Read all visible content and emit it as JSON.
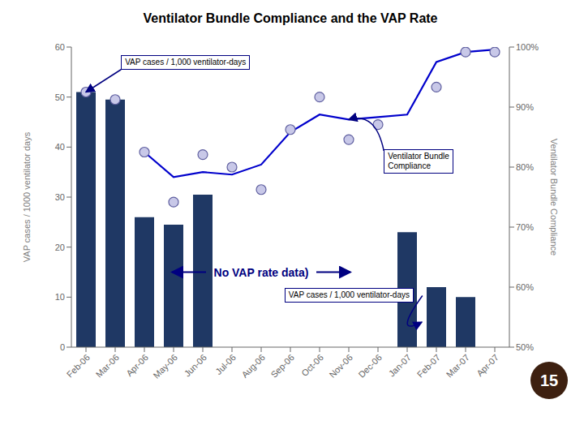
{
  "chart_data": {
    "type": "bar",
    "title": "Ventilator Bundle Compliance and the VAP Rate",
    "categories": [
      "Feb-06",
      "Mar-06",
      "Apr-06",
      "May-06",
      "Jun-06",
      "Jul-06",
      "Aug-06",
      "Sep-06",
      "Oct-06",
      "Nov-06",
      "Dec-06",
      "Jan-07",
      "Feb-07",
      "Mar-07",
      "Apr-07"
    ],
    "series": [
      {
        "type": "bar",
        "color": "#1F3864",
        "values": [
          51,
          49.5,
          26,
          24.5,
          30.5,
          null,
          null,
          null,
          null,
          null,
          null,
          23,
          12,
          10,
          null
        ]
      },
      {
        "type": "scatter",
        "color": "#C8C8E8",
        "values": [
          51,
          49.5,
          39,
          29,
          38.5,
          36,
          31.5,
          43.5,
          50,
          41.5,
          44.5,
          null,
          52,
          59,
          59
        ]
      },
      {
        "type": "line",
        "color": "#0000CC",
        "values": [
          null,
          null,
          39,
          34,
          35,
          34.5,
          36.5,
          43,
          46.5,
          45.5,
          46,
          46.5,
          57,
          59,
          59.5
        ]
      }
    ],
    "ylabel": "VAP cases / 1000 ventilator days",
    "y2label": "Ventilator Bundle Compliance",
    "ylim": [
      0,
      60
    ],
    "yticks": [
      0,
      10,
      20,
      30,
      40,
      50,
      60
    ],
    "y2lim": [
      0.5,
      1.0
    ],
    "y2ticks": [
      {
        "value": 0.5,
        "label": "50%"
      },
      {
        "value": 0.6,
        "label": "60%"
      },
      {
        "value": 0.7,
        "label": "70%"
      },
      {
        "value": 0.8,
        "label": "80%"
      },
      {
        "value": 0.9,
        "label": "90%"
      },
      {
        "value": 1.0,
        "label": "100%"
      }
    ],
    "grid": false,
    "annotations": [
      "VAP cases / 1,000 ventilator-days",
      "Ventilator Bundle\nCompliance",
      "No VAP rate data)",
      "VAP cases / 1,000 ventilator-days",
      "15"
    ]
  }
}
